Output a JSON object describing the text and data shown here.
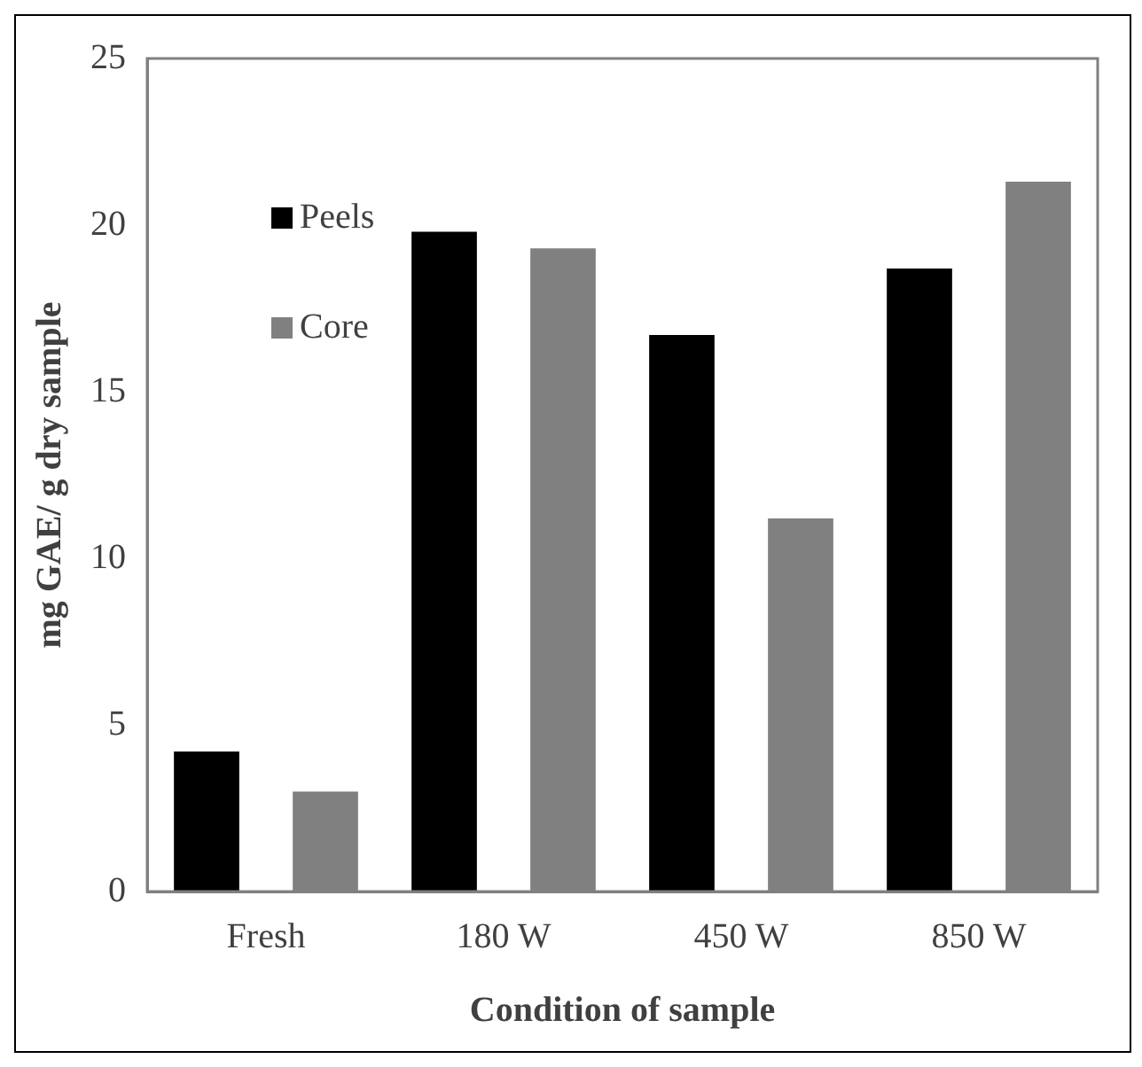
{
  "chart_data": {
    "type": "bar",
    "xlabel": "Condition of sample",
    "ylabel": "mg GAE/ g dry sample",
    "categories": [
      "Fresh",
      "180 W",
      "450 W",
      "850 W"
    ],
    "series": [
      {
        "name": "Peels",
        "color": "#000000",
        "values": [
          4.2,
          19.8,
          16.7,
          18.7
        ]
      },
      {
        "name": "Core",
        "color": "#808080",
        "values": [
          3.0,
          19.3,
          11.2,
          21.3
        ]
      }
    ],
    "ylim": [
      0,
      25
    ],
    "yticks": [
      0,
      5,
      10,
      15,
      20,
      25
    ],
    "grid": false,
    "legend": "top left"
  }
}
